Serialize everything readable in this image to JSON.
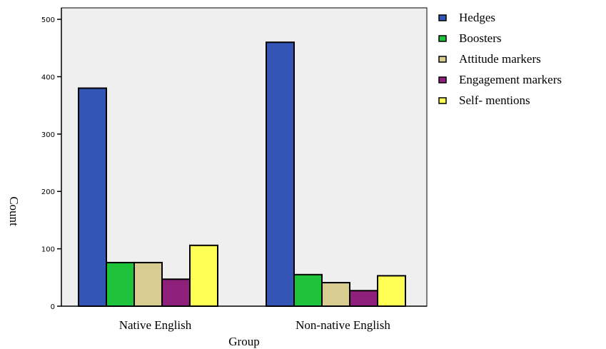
{
  "chart_data": {
    "type": "bar",
    "title": "",
    "xlabel": "Group",
    "ylabel": "Count",
    "categories": [
      "Native English",
      "Non-native English"
    ],
    "series": [
      {
        "name": "Hedges",
        "values": [
          380,
          460
        ],
        "color": "#3355b5"
      },
      {
        "name": "Boosters",
        "values": [
          76,
          55
        ],
        "color": "#1fc33b"
      },
      {
        "name": "Attitude markers",
        "values": [
          76,
          41
        ],
        "color": "#d8cd90"
      },
      {
        "name": "Engagement markers",
        "values": [
          47,
          27
        ],
        "color": "#8e1f7a"
      },
      {
        "name": "Self- mentions",
        "values": [
          106,
          53
        ],
        "color": "#ffff55"
      }
    ],
    "ylim": [
      0,
      520
    ],
    "yticks": [
      0,
      100,
      200,
      300,
      400,
      500
    ],
    "grid": false,
    "legend_position": "right",
    "plot_background": "#efefef"
  }
}
